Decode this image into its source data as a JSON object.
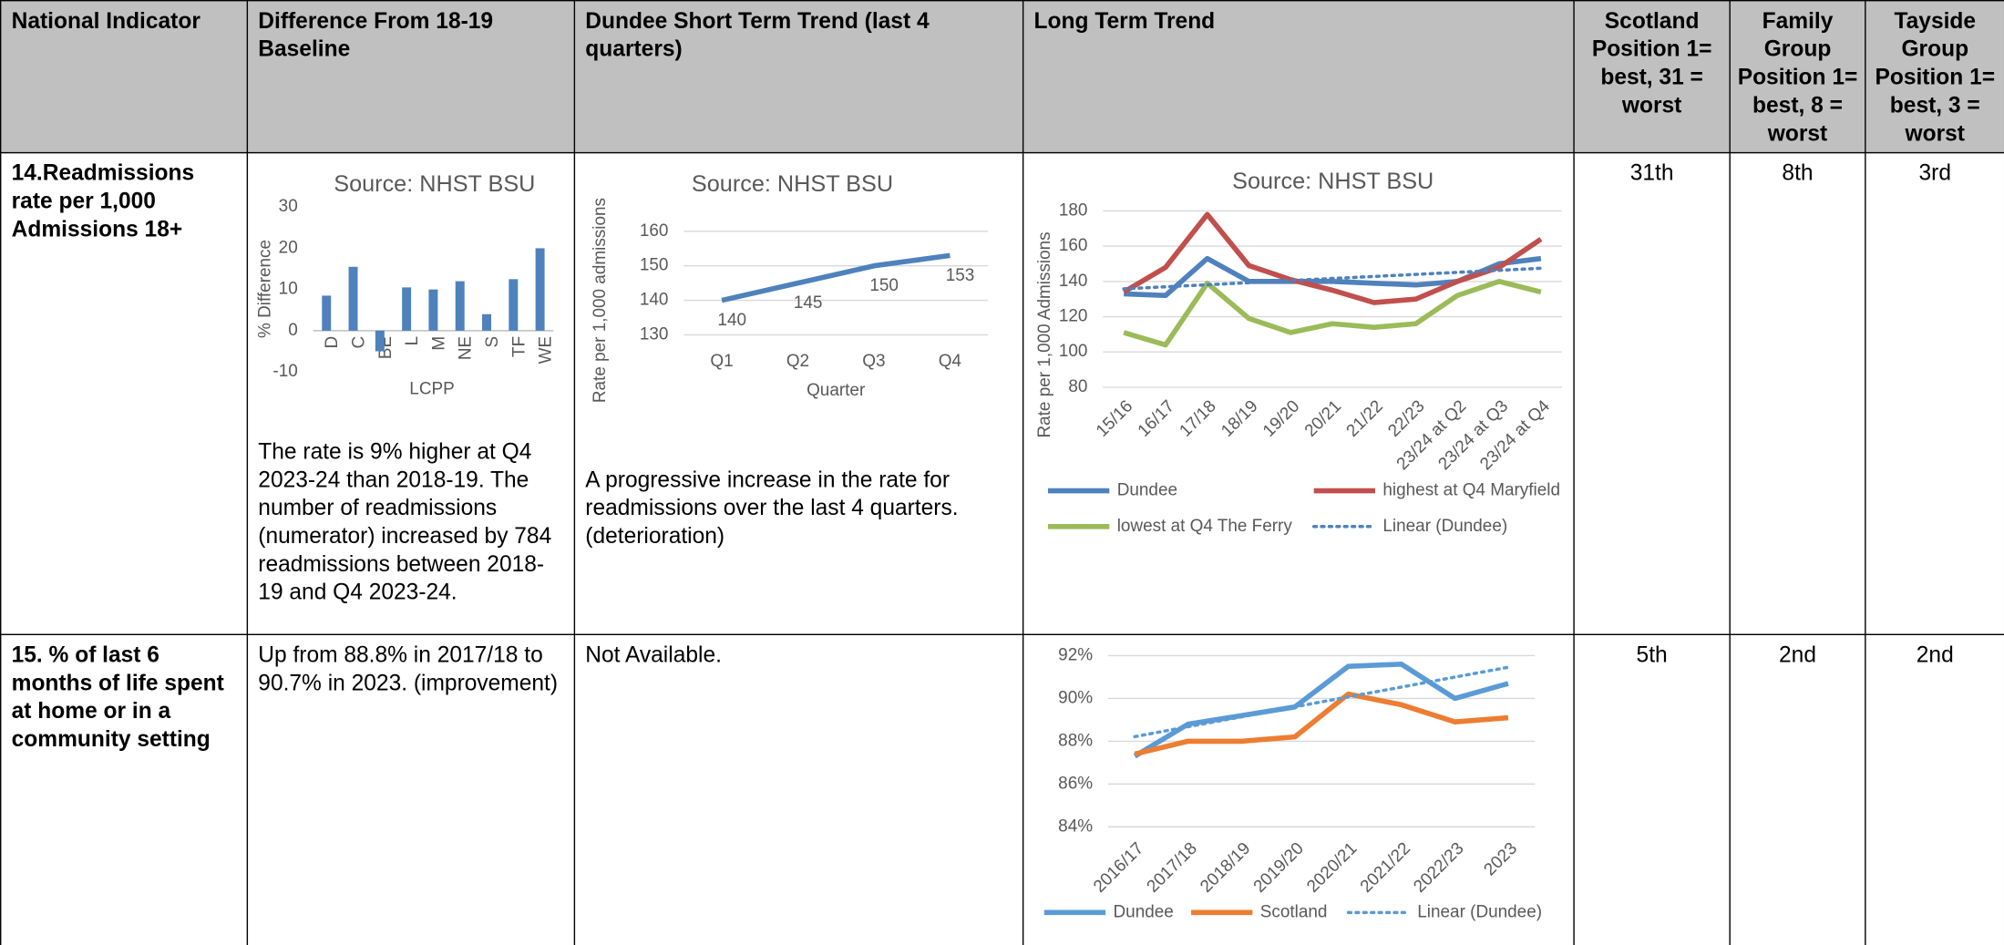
{
  "table": {
    "headers": [
      "National Indicator",
      "Difference From 18-19 Baseline",
      "Dundee Short Term Trend (last 4 quarters)",
      "Long Term Trend",
      "Scotland Position 1= best, 31 = worst",
      "Family Group Position 1= best, 8 = worst",
      "Tayside Group Position 1= best, 3 = worst"
    ],
    "rows": [
      {
        "indicator": "14.Readmissions rate per 1,000 Admissions 18+",
        "baseline": "The rate is 9% higher at Q4 2023-24 than 2018-19. The number of readmissions (numerator) increased by 784 readmissions between 2018-19 and Q4 2023-24.",
        "short_term": "A progressive increase in the rate for readmissions over the last 4 quarters. (deterioration)",
        "scotland": "31th",
        "family": "8th",
        "tayside": "3rd"
      },
      {
        "indicator": "15. % of last 6 months of life spent at home or in a community setting",
        "baseline": "Up from 88.8% in 2017/18 to 90.7%  in 2023. (improvement)",
        "short_term": "Not Available.",
        "scotland": "5th",
        "family": "2nd",
        "tayside": "2nd"
      }
    ]
  },
  "chart_data": [
    {
      "type": "bar",
      "title": "Source: NHST BSU",
      "x_label": "LCPP",
      "y_label": "% Difference",
      "categories": [
        "D",
        "C",
        "BE",
        "L",
        "M",
        "NE",
        "S",
        "TF",
        "WE"
      ],
      "values": [
        8.5,
        15.5,
        -5,
        10.5,
        10,
        12,
        4,
        12.5,
        20
      ],
      "color": "#4f81bd",
      "ylim": [
        -10,
        30
      ],
      "yticks": [
        -10,
        0,
        10,
        20,
        30
      ],
      "grid": false
    },
    {
      "type": "line",
      "title": "Source: NHST BSU",
      "x_label": "Quarter",
      "y_label": "Rate per 1,000 admissions",
      "categories": [
        "Q1",
        "Q2",
        "Q3",
        "Q4"
      ],
      "values": [
        140,
        145,
        150,
        153
      ],
      "color": "#4f81bd",
      "data_labels": true,
      "ylim": [
        130,
        160
      ],
      "yticks": [
        130,
        140,
        150,
        160
      ],
      "grid": true
    },
    {
      "type": "line",
      "title": "Source: NHST BSU",
      "y_label": "Rate per 1,000 Admissions",
      "categories": [
        "15/16",
        "16/17",
        "17/18",
        "18/19",
        "19/20",
        "20/21",
        "21/22",
        "22/23",
        "23/24 at Q2",
        "23/24 at Q3",
        "23/24 at Q4"
      ],
      "series": [
        {
          "name": "Dundee",
          "color": "#4f81bd",
          "values": [
            133,
            132,
            153,
            140,
            140,
            140,
            139,
            138,
            140,
            150,
            153
          ]
        },
        {
          "name": "highest at Q4 Maryfield",
          "color": "#c0504d",
          "values": [
            134,
            148,
            178,
            149,
            141,
            135,
            128,
            130,
            140,
            148,
            164
          ]
        },
        {
          "name": "lowest at Q4 The Ferry",
          "color": "#9bbb59",
          "values": [
            111,
            104,
            139,
            119,
            111,
            116,
            114,
            116,
            132,
            140,
            134
          ]
        },
        {
          "name": "Linear (Dundee)",
          "color": "#4f81bd",
          "trendline": "Dundee"
        }
      ],
      "ylim": [
        80,
        180
      ],
      "yticks": [
        80,
        100,
        120,
        140,
        160,
        180
      ],
      "grid": true
    },
    {
      "type": "line",
      "categories": [
        "2016/17",
        "2017/18",
        "2018/19",
        "2019/20",
        "2020/21",
        "2021/22",
        "2022/23",
        "2023"
      ],
      "series": [
        {
          "name": "Dundee",
          "color": "#5b9bd5",
          "values": [
            87.3,
            88.8,
            89.2,
            89.6,
            91.5,
            91.6,
            90.0,
            90.7
          ]
        },
        {
          "name": "Scotland",
          "color": "#ed7d31",
          "values": [
            87.4,
            88.0,
            88.0,
            88.2,
            90.2,
            89.7,
            88.9,
            89.1
          ]
        },
        {
          "name": "Linear (Dundee)",
          "color": "#5b9bd5",
          "trendline": "Dundee"
        }
      ],
      "ylim": [
        84,
        92
      ],
      "yticks": [
        {
          "value": 84,
          "label": "84%"
        },
        {
          "value": 86,
          "label": "86%"
        },
        {
          "value": 88,
          "label": "88%"
        },
        {
          "value": 90,
          "label": "90%"
        },
        {
          "value": 92,
          "label": "92%"
        }
      ],
      "grid": true
    }
  ]
}
